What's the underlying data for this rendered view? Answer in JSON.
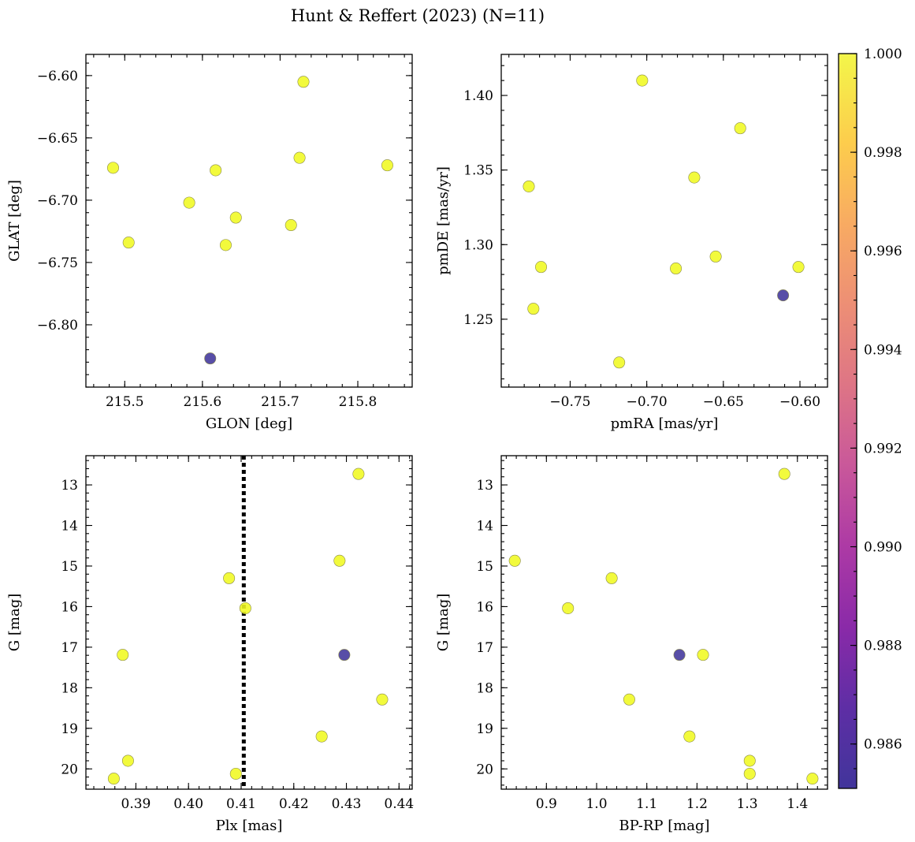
{
  "figure_title": "Hunt & Reffert (2023) (N=11)",
  "colors": {
    "high": "#f0f921",
    "low": "#41359b",
    "colormap": [
      "#0d0887",
      "#46039f",
      "#7201a8",
      "#9c179e",
      "#bd3786",
      "#d8576b",
      "#ed7953",
      "#fb9f3a",
      "#fdca26",
      "#f0f921"
    ]
  },
  "colorbar": {
    "min": 0.9851,
    "max": 1.0,
    "ticks": [
      "0.986",
      "0.988",
      "0.990",
      "0.992",
      "0.994",
      "0.996",
      "0.998",
      "1.000"
    ],
    "tick_values": [
      0.986,
      0.988,
      0.99,
      0.992,
      0.994,
      0.996,
      0.998,
      1.0
    ]
  },
  "chart_data": [
    {
      "type": "scatter",
      "xlabel": "GLON [deg]",
      "ylabel": "GLAT [deg]",
      "xlim": [
        215.45,
        215.87
      ],
      "ylim": [
        -6.85,
        -6.583
      ],
      "xticks": [
        215.5,
        215.6,
        215.7,
        215.8
      ],
      "xtick_labels": [
        "215.5",
        "215.6",
        "215.7",
        "215.8"
      ],
      "yticks": [
        -6.6,
        -6.65,
        -6.7,
        -6.75,
        -6.8
      ],
      "ytick_labels": [
        "−6.60",
        "−6.65",
        "−6.70",
        "−6.75",
        "−6.80"
      ],
      "yinvert": false,
      "x": [
        215.73,
        215.485,
        215.617,
        215.725,
        215.838,
        215.583,
        215.505,
        215.643,
        215.714,
        215.63,
        215.61
      ],
      "y": [
        -6.605,
        -6.674,
        -6.676,
        -6.666,
        -6.672,
        -6.702,
        -6.734,
        -6.714,
        -6.72,
        -6.736,
        -6.827
      ],
      "c": [
        1,
        1,
        1,
        1,
        1,
        1,
        1,
        1,
        1,
        1,
        0.9851
      ]
    },
    {
      "type": "scatter",
      "xlabel": "pmRA [mas/yr]",
      "ylabel": "pmDE [mas/yr]",
      "xlim": [
        -0.795,
        -0.582
      ],
      "ylim": [
        1.2045,
        1.4275
      ],
      "xticks": [
        -0.75,
        -0.7,
        -0.65,
        -0.6
      ],
      "xtick_labels": [
        "−0.75",
        "−0.70",
        "−0.65",
        "−0.60"
      ],
      "yticks": [
        1.25,
        1.3,
        1.35,
        1.4
      ],
      "ytick_labels": [
        "1.25",
        "1.30",
        "1.35",
        "1.40"
      ],
      "yinvert": false,
      "x": [
        -0.703,
        -0.639,
        -0.777,
        -0.669,
        -0.769,
        -0.655,
        -0.681,
        -0.601,
        -0.774,
        -0.718,
        -0.611
      ],
      "y": [
        1.41,
        1.378,
        1.339,
        1.345,
        1.285,
        1.292,
        1.284,
        1.285,
        1.257,
        1.221,
        1.266
      ],
      "c": [
        1,
        1,
        1,
        1,
        1,
        1,
        1,
        1,
        1,
        1,
        0.9851
      ]
    },
    {
      "type": "scatter",
      "xlabel": "Plx [mas]",
      "ylabel": "G [mag]",
      "xlim": [
        0.3805,
        0.4425
      ],
      "ylim": [
        20.5,
        12.28
      ],
      "xticks": [
        0.39,
        0.4,
        0.41,
        0.42,
        0.43,
        0.44
      ],
      "xtick_labels": [
        "0.39",
        "0.40",
        "0.41",
        "0.42",
        "0.43",
        "0.44"
      ],
      "yticks": [
        13,
        14,
        15,
        16,
        17,
        18,
        19,
        20
      ],
      "ytick_labels": [
        "13",
        "14",
        "15",
        "16",
        "17",
        "18",
        "19",
        "20"
      ],
      "yinvert": true,
      "vline": 0.4105,
      "x": [
        0.4323,
        0.4287,
        0.4077,
        0.4108,
        0.3875,
        0.4368,
        0.4253,
        0.3885,
        0.409,
        0.3858,
        0.4296
      ],
      "y": [
        12.73,
        14.87,
        15.3,
        16.04,
        17.19,
        18.29,
        19.2,
        19.8,
        20.12,
        20.24,
        17.19
      ],
      "c": [
        1,
        1,
        1,
        1,
        1,
        1,
        1,
        1,
        1,
        1,
        0.9851
      ]
    },
    {
      "type": "scatter",
      "xlabel": "BP-RP [mag]",
      "ylabel": "G [mag]",
      "xlim": [
        0.81,
        1.46
      ],
      "ylim": [
        20.5,
        12.28
      ],
      "xticks": [
        0.9,
        1.0,
        1.1,
        1.2,
        1.3,
        1.4
      ],
      "xtick_labels": [
        "0.9",
        "1.0",
        "1.1",
        "1.2",
        "1.3",
        "1.4"
      ],
      "yticks": [
        13,
        14,
        15,
        16,
        17,
        18,
        19,
        20
      ],
      "ytick_labels": [
        "13",
        "14",
        "15",
        "16",
        "17",
        "18",
        "19",
        "20"
      ],
      "yinvert": true,
      "x": [
        1.374,
        0.837,
        1.03,
        0.943,
        1.212,
        1.065,
        1.185,
        1.305,
        1.305,
        1.43,
        1.165
      ],
      "y": [
        12.73,
        14.87,
        15.3,
        16.04,
        17.19,
        18.29,
        19.2,
        19.8,
        20.12,
        20.24,
        17.19
      ],
      "c": [
        1,
        1,
        1,
        1,
        1,
        1,
        1,
        1,
        1,
        1,
        0.9851
      ]
    }
  ]
}
